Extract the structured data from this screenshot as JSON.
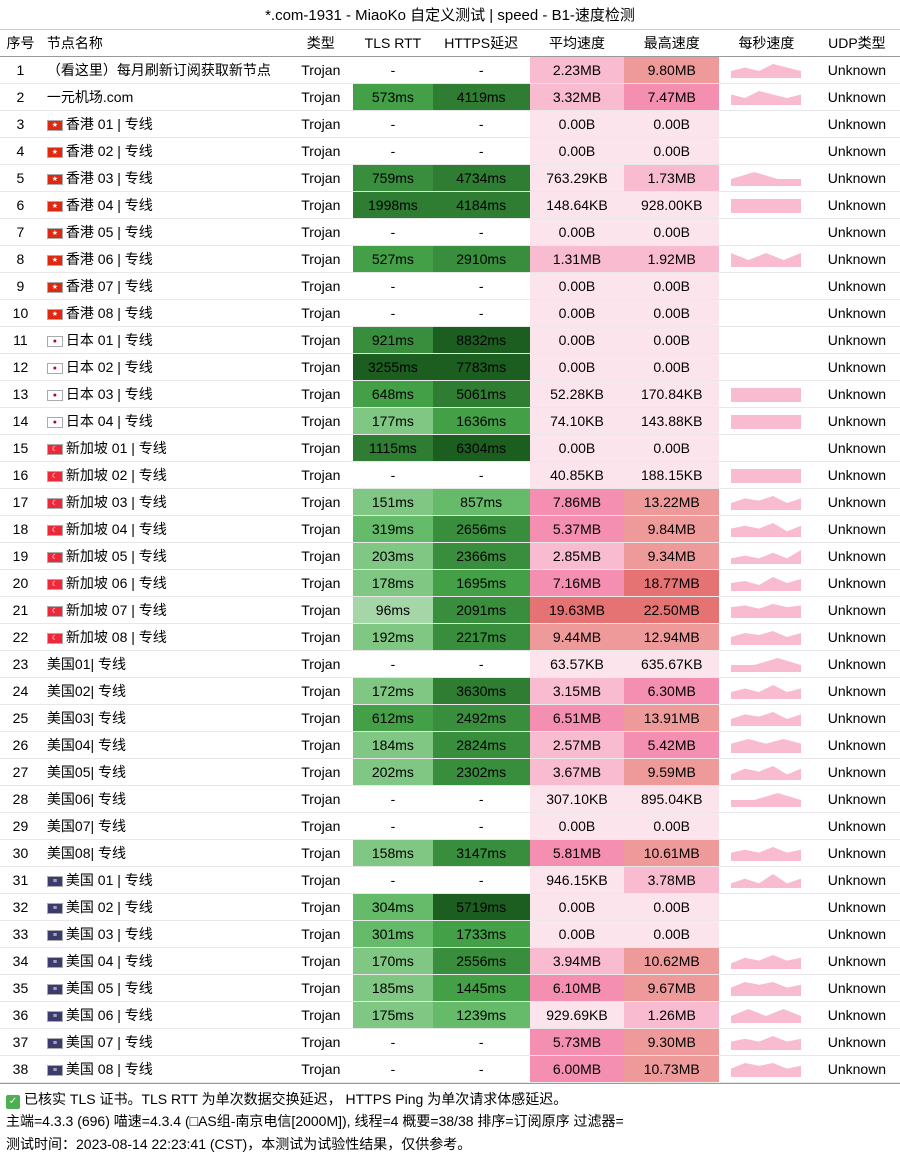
{
  "title": "*.com-1931 - MiaoKo 自定义测试 | speed - B1-速度检测",
  "columns": [
    "序号",
    "节点名称",
    "类型",
    "TLS RTT",
    "HTTPS延迟",
    "平均速度",
    "最高速度",
    "每秒速度",
    "UDP类型"
  ],
  "flags": {
    "hk": "★",
    "jp": "●",
    "sg": "☾",
    "us": "≡"
  },
  "green_scale": {
    "low": "#e8f5e9",
    "mid": "#81c784",
    "high": "#2e7d32"
  },
  "pink_scale": {
    "zero": "#fce4ec",
    "low": "#f8bbd0",
    "mid": "#f48fb1",
    "high": "#ef9a9a"
  },
  "spark_color": "#f8bbd0",
  "rows": [
    {
      "idx": 1,
      "flag": "",
      "name": "（看这里）每月刷新订阅获取新节点",
      "type": "Trojan",
      "tls": "-",
      "https": "-",
      "avg": "2.23MB",
      "max": "9.80MB",
      "spark": [
        2,
        3,
        2,
        4,
        3,
        2
      ],
      "udp": "Unknown",
      "tc": "#fff",
      "hc": "#fff",
      "ac": "#f8bbd0",
      "mc": "#ef9a9a"
    },
    {
      "idx": 2,
      "flag": "",
      "name": "一元机场.com",
      "type": "Trojan",
      "tls": "573ms",
      "https": "4119ms",
      "avg": "3.32MB",
      "max": "7.47MB",
      "spark": [
        3,
        2,
        4,
        3,
        2,
        3
      ],
      "udp": "Unknown",
      "tc": "#43a047",
      "hc": "#2e7d32",
      "ac": "#f8bbd0",
      "mc": "#f48fb1"
    },
    {
      "idx": 3,
      "flag": "hk",
      "name": "香港 01 | 专线",
      "type": "Trojan",
      "tls": "-",
      "https": "-",
      "avg": "0.00B",
      "max": "0.00B",
      "spark": [],
      "udp": "Unknown",
      "tc": "#fff",
      "hc": "#fff",
      "ac": "#fce4ec",
      "mc": "#fce4ec"
    },
    {
      "idx": 4,
      "flag": "hk",
      "name": "香港 02 | 专线",
      "type": "Trojan",
      "tls": "-",
      "https": "-",
      "avg": "0.00B",
      "max": "0.00B",
      "spark": [],
      "udp": "Unknown",
      "tc": "#fff",
      "hc": "#fff",
      "ac": "#fce4ec",
      "mc": "#fce4ec"
    },
    {
      "idx": 5,
      "flag": "hk",
      "name": "香港 03 | 专线",
      "type": "Trojan",
      "tls": "759ms",
      "https": "4734ms",
      "avg": "763.29KB",
      "max": "1.73MB",
      "spark": [
        1,
        2,
        1,
        1
      ],
      "udp": "Unknown",
      "tc": "#388e3c",
      "hc": "#2e7d32",
      "ac": "#fce4ec",
      "mc": "#f8bbd0"
    },
    {
      "idx": 6,
      "flag": "hk",
      "name": "香港 04 | 专线",
      "type": "Trojan",
      "tls": "1998ms",
      "https": "4184ms",
      "avg": "148.64KB",
      "max": "928.00KB",
      "spark": [
        1,
        1,
        1,
        1
      ],
      "udp": "Unknown",
      "tc": "#2e7d32",
      "hc": "#2e7d32",
      "ac": "#fce4ec",
      "mc": "#fce4ec"
    },
    {
      "idx": 7,
      "flag": "hk",
      "name": "香港 05 | 专线",
      "type": "Trojan",
      "tls": "-",
      "https": "-",
      "avg": "0.00B",
      "max": "0.00B",
      "spark": [],
      "udp": "Unknown",
      "tc": "#fff",
      "hc": "#fff",
      "ac": "#fce4ec",
      "mc": "#fce4ec"
    },
    {
      "idx": 8,
      "flag": "hk",
      "name": "香港 06 | 专线",
      "type": "Trojan",
      "tls": "527ms",
      "https": "2910ms",
      "avg": "1.31MB",
      "max": "1.92MB",
      "spark": [
        2,
        1,
        2,
        1,
        2
      ],
      "udp": "Unknown",
      "tc": "#43a047",
      "hc": "#388e3c",
      "ac": "#f8bbd0",
      "mc": "#f8bbd0"
    },
    {
      "idx": 9,
      "flag": "hk",
      "name": "香港 07 | 专线",
      "type": "Trojan",
      "tls": "-",
      "https": "-",
      "avg": "0.00B",
      "max": "0.00B",
      "spark": [],
      "udp": "Unknown",
      "tc": "#fff",
      "hc": "#fff",
      "ac": "#fce4ec",
      "mc": "#fce4ec"
    },
    {
      "idx": 10,
      "flag": "hk",
      "name": "香港 08 | 专线",
      "type": "Trojan",
      "tls": "-",
      "https": "-",
      "avg": "0.00B",
      "max": "0.00B",
      "spark": [],
      "udp": "Unknown",
      "tc": "#fff",
      "hc": "#fff",
      "ac": "#fce4ec",
      "mc": "#fce4ec"
    },
    {
      "idx": 11,
      "flag": "jp",
      "name": "日本 01 | 专线",
      "type": "Trojan",
      "tls": "921ms",
      "https": "8832ms",
      "avg": "0.00B",
      "max": "0.00B",
      "spark": [],
      "udp": "Unknown",
      "tc": "#388e3c",
      "hc": "#1b5e20",
      "ac": "#fce4ec",
      "mc": "#fce4ec"
    },
    {
      "idx": 12,
      "flag": "jp",
      "name": "日本 02 | 专线",
      "type": "Trojan",
      "tls": "3255ms",
      "https": "7783ms",
      "avg": "0.00B",
      "max": "0.00B",
      "spark": [],
      "udp": "Unknown",
      "tc": "#1b5e20",
      "hc": "#1b5e20",
      "ac": "#fce4ec",
      "mc": "#fce4ec"
    },
    {
      "idx": 13,
      "flag": "jp",
      "name": "日本 03 | 专线",
      "type": "Trojan",
      "tls": "648ms",
      "https": "5061ms",
      "avg": "52.28KB",
      "max": "170.84KB",
      "spark": [
        1,
        1,
        1
      ],
      "udp": "Unknown",
      "tc": "#43a047",
      "hc": "#2e7d32",
      "ac": "#fce4ec",
      "mc": "#fce4ec"
    },
    {
      "idx": 14,
      "flag": "jp",
      "name": "日本 04 | 专线",
      "type": "Trojan",
      "tls": "177ms",
      "https": "1636ms",
      "avg": "74.10KB",
      "max": "143.88KB",
      "spark": [
        1,
        1,
        1
      ],
      "udp": "Unknown",
      "tc": "#81c784",
      "hc": "#43a047",
      "ac": "#fce4ec",
      "mc": "#fce4ec"
    },
    {
      "idx": 15,
      "flag": "sg",
      "name": "新加坡 01 | 专线",
      "type": "Trojan",
      "tls": "1115ms",
      "https": "6304ms",
      "avg": "0.00B",
      "max": "0.00B",
      "spark": [],
      "udp": "Unknown",
      "tc": "#2e7d32",
      "hc": "#1b5e20",
      "ac": "#fce4ec",
      "mc": "#fce4ec"
    },
    {
      "idx": 16,
      "flag": "sg",
      "name": "新加坡 02 | 专线",
      "type": "Trojan",
      "tls": "-",
      "https": "-",
      "avg": "40.85KB",
      "max": "188.15KB",
      "spark": [
        1,
        1,
        1
      ],
      "udp": "Unknown",
      "tc": "#fff",
      "hc": "#fff",
      "ac": "#fce4ec",
      "mc": "#fce4ec"
    },
    {
      "idx": 17,
      "flag": "sg",
      "name": "新加坡 03 | 专线",
      "type": "Trojan",
      "tls": "151ms",
      "https": "857ms",
      "avg": "7.86MB",
      "max": "13.22MB",
      "spark": [
        3,
        5,
        4,
        6,
        3,
        5
      ],
      "udp": "Unknown",
      "tc": "#81c784",
      "hc": "#66bb6a",
      "ac": "#f48fb1",
      "mc": "#ef9a9a"
    },
    {
      "idx": 18,
      "flag": "sg",
      "name": "新加坡 04 | 专线",
      "type": "Trojan",
      "tls": "319ms",
      "https": "2656ms",
      "avg": "5.37MB",
      "max": "9.84MB",
      "spark": [
        3,
        4,
        3,
        5,
        2,
        4
      ],
      "udp": "Unknown",
      "tc": "#66bb6a",
      "hc": "#388e3c",
      "ac": "#f48fb1",
      "mc": "#ef9a9a"
    },
    {
      "idx": 19,
      "flag": "sg",
      "name": "新加坡 05 | 专线",
      "type": "Trojan",
      "tls": "203ms",
      "https": "2366ms",
      "avg": "2.85MB",
      "max": "9.34MB",
      "spark": [
        2,
        3,
        2,
        4,
        2,
        5
      ],
      "udp": "Unknown",
      "tc": "#81c784",
      "hc": "#388e3c",
      "ac": "#f8bbd0",
      "mc": "#ef9a9a"
    },
    {
      "idx": 20,
      "flag": "sg",
      "name": "新加坡 06 | 专线",
      "type": "Trojan",
      "tls": "178ms",
      "https": "1695ms",
      "avg": "7.16MB",
      "max": "18.77MB",
      "spark": [
        4,
        5,
        3,
        7,
        4,
        6
      ],
      "udp": "Unknown",
      "tc": "#81c784",
      "hc": "#43a047",
      "ac": "#f48fb1",
      "mc": "#e57373"
    },
    {
      "idx": 21,
      "flag": "sg",
      "name": "新加坡 07 | 专线",
      "type": "Trojan",
      "tls": "96ms",
      "https": "2091ms",
      "avg": "19.63MB",
      "max": "22.50MB",
      "spark": [
        7,
        8,
        6,
        9,
        7,
        8
      ],
      "udp": "Unknown",
      "tc": "#a5d6a7",
      "hc": "#388e3c",
      "ac": "#e57373",
      "mc": "#e57373"
    },
    {
      "idx": 22,
      "flag": "sg",
      "name": "新加坡 08 | 专线",
      "type": "Trojan",
      "tls": "192ms",
      "https": "2217ms",
      "avg": "9.44MB",
      "max": "12.94MB",
      "spark": [
        4,
        6,
        5,
        7,
        4,
        6
      ],
      "udp": "Unknown",
      "tc": "#81c784",
      "hc": "#388e3c",
      "ac": "#ef9a9a",
      "mc": "#ef9a9a"
    },
    {
      "idx": 23,
      "flag": "",
      "name": "美国01| 专线",
      "type": "Trojan",
      "tls": "-",
      "https": "-",
      "avg": "63.57KB",
      "max": "635.67KB",
      "spark": [
        1,
        1,
        2,
        1
      ],
      "udp": "Unknown",
      "tc": "#fff",
      "hc": "#fff",
      "ac": "#fce4ec",
      "mc": "#fce4ec"
    },
    {
      "idx": 24,
      "flag": "",
      "name": "美国02| 专线",
      "type": "Trojan",
      "tls": "172ms",
      "https": "3630ms",
      "avg": "3.15MB",
      "max": "6.30MB",
      "spark": [
        2,
        3,
        2,
        4,
        2,
        3
      ],
      "udp": "Unknown",
      "tc": "#81c784",
      "hc": "#2e7d32",
      "ac": "#f8bbd0",
      "mc": "#f48fb1"
    },
    {
      "idx": 25,
      "flag": "",
      "name": "美国03| 专线",
      "type": "Trojan",
      "tls": "612ms",
      "https": "2492ms",
      "avg": "6.51MB",
      "max": "13.91MB",
      "spark": [
        3,
        5,
        4,
        6,
        3,
        5
      ],
      "udp": "Unknown",
      "tc": "#43a047",
      "hc": "#388e3c",
      "ac": "#f48fb1",
      "mc": "#ef9a9a"
    },
    {
      "idx": 26,
      "flag": "",
      "name": "美国04| 专线",
      "type": "Trojan",
      "tls": "184ms",
      "https": "2824ms",
      "avg": "2.57MB",
      "max": "5.42MB",
      "spark": [
        2,
        3,
        2,
        3,
        2
      ],
      "udp": "Unknown",
      "tc": "#81c784",
      "hc": "#388e3c",
      "ac": "#f8bbd0",
      "mc": "#f48fb1"
    },
    {
      "idx": 27,
      "flag": "",
      "name": "美国05| 专线",
      "type": "Trojan",
      "tls": "202ms",
      "https": "2302ms",
      "avg": "3.67MB",
      "max": "9.59MB",
      "spark": [
        2,
        4,
        3,
        5,
        2,
        4
      ],
      "udp": "Unknown",
      "tc": "#81c784",
      "hc": "#388e3c",
      "ac": "#f8bbd0",
      "mc": "#ef9a9a"
    },
    {
      "idx": 28,
      "flag": "",
      "name": "美国06| 专线",
      "type": "Trojan",
      "tls": "-",
      "https": "-",
      "avg": "307.10KB",
      "max": "895.04KB",
      "spark": [
        1,
        1,
        2,
        1
      ],
      "udp": "Unknown",
      "tc": "#fff",
      "hc": "#fff",
      "ac": "#fce4ec",
      "mc": "#fce4ec"
    },
    {
      "idx": 29,
      "flag": "",
      "name": "美国07| 专线",
      "type": "Trojan",
      "tls": "-",
      "https": "-",
      "avg": "0.00B",
      "max": "0.00B",
      "spark": [],
      "udp": "Unknown",
      "tc": "#fff",
      "hc": "#fff",
      "ac": "#fce4ec",
      "mc": "#fce4ec"
    },
    {
      "idx": 30,
      "flag": "",
      "name": "美国08| 专线",
      "type": "Trojan",
      "tls": "158ms",
      "https": "3147ms",
      "avg": "5.81MB",
      "max": "10.61MB",
      "spark": [
        3,
        4,
        3,
        5,
        3,
        4
      ],
      "udp": "Unknown",
      "tc": "#81c784",
      "hc": "#388e3c",
      "ac": "#f48fb1",
      "mc": "#ef9a9a"
    },
    {
      "idx": 31,
      "flag": "us",
      "name": "美国 01 | 专线",
      "type": "Trojan",
      "tls": "-",
      "https": "-",
      "avg": "946.15KB",
      "max": "3.78MB",
      "spark": [
        1,
        2,
        1,
        3,
        1,
        2
      ],
      "udp": "Unknown",
      "tc": "#fff",
      "hc": "#fff",
      "ac": "#fce4ec",
      "mc": "#f8bbd0"
    },
    {
      "idx": 32,
      "flag": "us",
      "name": "美国 02 | 专线",
      "type": "Trojan",
      "tls": "304ms",
      "https": "5719ms",
      "avg": "0.00B",
      "max": "0.00B",
      "spark": [],
      "udp": "Unknown",
      "tc": "#66bb6a",
      "hc": "#1b5e20",
      "ac": "#fce4ec",
      "mc": "#fce4ec"
    },
    {
      "idx": 33,
      "flag": "us",
      "name": "美国 03 | 专线",
      "type": "Trojan",
      "tls": "301ms",
      "https": "1733ms",
      "avg": "0.00B",
      "max": "0.00B",
      "spark": [],
      "udp": "Unknown",
      "tc": "#66bb6a",
      "hc": "#43a047",
      "ac": "#fce4ec",
      "mc": "#fce4ec"
    },
    {
      "idx": 34,
      "flag": "us",
      "name": "美国 04 | 专线",
      "type": "Trojan",
      "tls": "170ms",
      "https": "2556ms",
      "avg": "3.94MB",
      "max": "10.62MB",
      "spark": [
        2,
        4,
        3,
        5,
        3,
        4
      ],
      "udp": "Unknown",
      "tc": "#81c784",
      "hc": "#388e3c",
      "ac": "#f8bbd0",
      "mc": "#ef9a9a"
    },
    {
      "idx": 35,
      "flag": "us",
      "name": "美国 05 | 专线",
      "type": "Trojan",
      "tls": "185ms",
      "https": "1445ms",
      "avg": "6.10MB",
      "max": "9.67MB",
      "spark": [
        3,
        5,
        4,
        5,
        3,
        4
      ],
      "udp": "Unknown",
      "tc": "#81c784",
      "hc": "#43a047",
      "ac": "#f48fb1",
      "mc": "#ef9a9a"
    },
    {
      "idx": 36,
      "flag": "us",
      "name": "美国 06 | 专线",
      "type": "Trojan",
      "tls": "175ms",
      "https": "1239ms",
      "avg": "929.69KB",
      "max": "1.26MB",
      "spark": [
        1,
        2,
        1,
        2,
        1
      ],
      "udp": "Unknown",
      "tc": "#81c784",
      "hc": "#66bb6a",
      "ac": "#fce4ec",
      "mc": "#f8bbd0"
    },
    {
      "idx": 37,
      "flag": "us",
      "name": "美国 07 | 专线",
      "type": "Trojan",
      "tls": "-",
      "https": "-",
      "avg": "5.73MB",
      "max": "9.30MB",
      "spark": [
        3,
        4,
        3,
        5,
        3,
        4
      ],
      "udp": "Unknown",
      "tc": "#fff",
      "hc": "#fff",
      "ac": "#f48fb1",
      "mc": "#ef9a9a"
    },
    {
      "idx": 38,
      "flag": "us",
      "name": "美国 08 | 专线",
      "type": "Trojan",
      "tls": "-",
      "https": "-",
      "avg": "6.00MB",
      "max": "10.73MB",
      "spark": [
        3,
        5,
        4,
        5,
        3,
        4
      ],
      "udp": "Unknown",
      "tc": "#fff",
      "hc": "#fff",
      "ac": "#f48fb1",
      "mc": "#ef9a9a"
    }
  ],
  "footer": {
    "line1": "已核实 TLS 证书。TLS RTT 为单次数据交换延迟， HTTPS Ping 为单次请求体感延迟。",
    "line2": "主端=4.3.3 (696) 喵速=4.3.4 (□AS组-南京电信[2000M]), 线程=4 概要=38/38 排序=订阅原序 过滤器=",
    "line3": "测试时间：2023-08-14 22:23:41 (CST)，本测试为试验性结果，仅供参考。"
  }
}
